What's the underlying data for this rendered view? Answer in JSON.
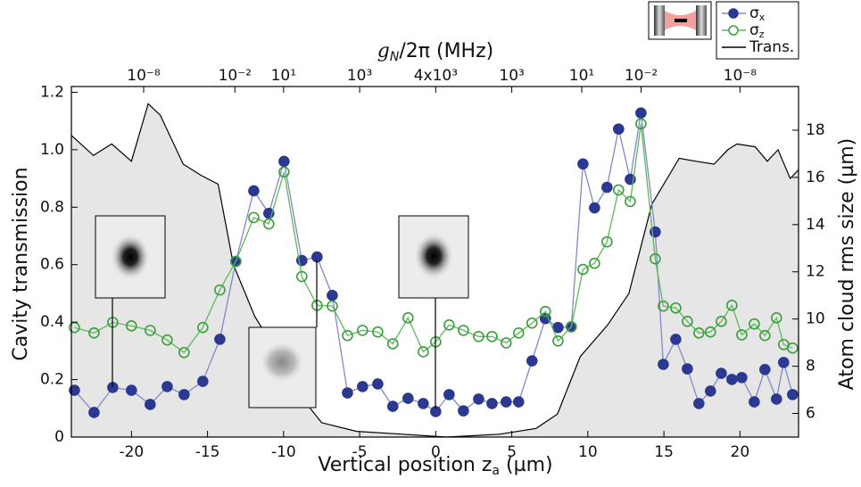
{
  "chart_data": {
    "type": "line",
    "x_label": "Vertical position z",
    "x_label_sub": "a",
    "x_label_end": " (µm)",
    "x2_label": "g",
    "x2_label_sub": "N",
    "x2_label_end": "/2π (MHz)",
    "y_label": "Cavity transmission",
    "y2_label": "Atom cloud rms size (µm)",
    "xlim": [
      -23.95,
      23.85
    ],
    "xticks": [
      -20,
      -15,
      -10,
      -5,
      0,
      5,
      10,
      15,
      20
    ],
    "x2ticks": [
      {
        "value": -19.2,
        "label": "10⁻⁸"
      },
      {
        "value": -13.2,
        "label": "10⁻²"
      },
      {
        "value": -10,
        "label": "10¹"
      },
      {
        "value": -5,
        "label": "10³"
      },
      {
        "value": 0,
        "label": "4x10³"
      },
      {
        "value": 5,
        "label": "10³"
      },
      {
        "value": 9.6,
        "label": "10¹"
      },
      {
        "value": 13.5,
        "label": "10⁻²"
      },
      {
        "value": 20,
        "label": "10⁻⁸"
      }
    ],
    "ylim": [
      0,
      1.22
    ],
    "yticks": [
      0,
      0.2,
      0.4,
      0.6,
      0.8,
      {
        "value": 1,
        "label": "1.0"
      },
      1.2
    ],
    "y2lim": [
      5,
      19.85
    ],
    "y2ticks": [
      6,
      8,
      10,
      12,
      14,
      16,
      18
    ],
    "series": [
      {
        "name": "σ",
        "name_sub": "x",
        "axis": "y2",
        "color": "#2b3990",
        "line_color": "#8088c8",
        "marker": "filled",
        "x": [
          -23.75,
          -22.46,
          -21.23,
          -20,
          -18.77,
          -17.65,
          -16.54,
          -15.31,
          -14.19,
          -13.14,
          -11.96,
          -10.97,
          -9.97,
          -8.8,
          -7.8,
          -6.8,
          -5.8,
          -4.81,
          -3.81,
          -2.82,
          -1.82,
          -0.82,
          0,
          0.88,
          1.82,
          2.82,
          3.7,
          4.63,
          5.45,
          6.33,
          7.21,
          8.04,
          8.91,
          9.68,
          10.44,
          11.26,
          12.02,
          12.79,
          13.49,
          14.43,
          14.96,
          15.78,
          16.54,
          17.3,
          18.06,
          18.77,
          19.47,
          20.12,
          20.94,
          21.64,
          22.4,
          22.87,
          23.46
        ],
        "values": [
          6.98,
          6.04,
          7.1,
          6.98,
          6.38,
          7.14,
          6.8,
          7.36,
          9.14,
          12.44,
          15.43,
          14.48,
          16.68,
          12.48,
          12.63,
          11.0,
          6.87,
          7.14,
          7.25,
          6.3,
          6.64,
          6.42,
          6.08,
          6.8,
          6.11,
          6.61,
          6.42,
          6.49,
          6.49,
          8.23,
          10.02,
          9.64,
          9.67,
          16.57,
          14.71,
          15.58,
          18.05,
          15.92,
          18.73,
          13.69,
          8.08,
          9.14,
          7.89,
          6.42,
          6.95,
          7.7,
          7.44,
          7.52,
          6.49,
          7.86,
          6.61,
          8.16,
          6.8
        ]
      },
      {
        "name": "σ",
        "name_sub": "z",
        "axis": "y2",
        "color": "#3a9e3a",
        "line_color": "#5cb85c",
        "marker": "open",
        "x": [
          -23.75,
          -22.46,
          -21.23,
          -20,
          -18.77,
          -17.65,
          -16.54,
          -15.31,
          -14.19,
          -13.14,
          -11.96,
          -10.97,
          -9.97,
          -8.8,
          -7.8,
          -6.8,
          -5.8,
          -4.81,
          -3.81,
          -2.82,
          -1.82,
          -0.82,
          0,
          0.88,
          1.82,
          2.82,
          3.7,
          4.63,
          5.45,
          6.33,
          7.21,
          8.04,
          8.91,
          9.68,
          10.44,
          11.26,
          12.02,
          12.79,
          13.49,
          14.43,
          14.96,
          15.78,
          16.54,
          17.3,
          18.06,
          18.77,
          19.47,
          20.12,
          20.94,
          21.64,
          22.4,
          22.87,
          23.46
        ],
        "values": [
          9.64,
          9.41,
          9.86,
          9.71,
          9.52,
          9.11,
          8.58,
          9.64,
          11.23,
          12.44,
          14.3,
          14.03,
          16.23,
          11.8,
          10.58,
          10.55,
          9.3,
          9.52,
          9.45,
          8.95,
          10.05,
          8.61,
          9.03,
          9.75,
          9.52,
          9.26,
          9.26,
          8.99,
          9.41,
          9.83,
          10.32,
          9.07,
          9.67,
          12.1,
          12.36,
          13.27,
          15.47,
          14.98,
          18.27,
          12.55,
          10.55,
          10.47,
          9.9,
          9.41,
          9.45,
          9.9,
          10.58,
          9.33,
          9.79,
          9.3,
          10.05,
          8.92,
          8.77
        ]
      },
      {
        "name": "Trans.",
        "axis": "y",
        "color": "#000000",
        "fill": "#e6e6e6",
        "x": [
          -23.95,
          -22.5,
          -21.3,
          -20,
          -18.9,
          -18.1,
          -16.6,
          -15.4,
          -14.3,
          -13.3,
          -11.9,
          -9.9,
          -8.4,
          -7.5,
          -5.2,
          -2.2,
          0.7,
          4.2,
          6.6,
          8,
          9.5,
          11.3,
          12.7,
          14.2,
          16,
          17.1,
          18.3,
          19.2,
          19.8,
          21,
          21.8,
          22.5,
          23.3,
          23.85
        ],
        "values": [
          1.05,
          0.98,
          1.02,
          0.96,
          1.16,
          1.12,
          0.95,
          0.91,
          0.88,
          0.6,
          0.42,
          0.25,
          0.11,
          0.05,
          0.02,
          0.01,
          0,
          0.01,
          0.03,
          0.08,
          0.28,
          0.39,
          0.5,
          0.81,
          0.97,
          0.96,
          0.95,
          1,
          1.02,
          1.01,
          0.96,
          1,
          0.9,
          0.93
        ]
      }
    ]
  }
}
